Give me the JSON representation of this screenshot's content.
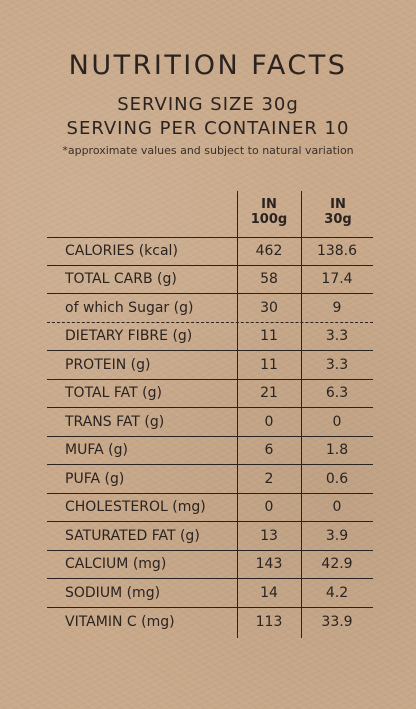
{
  "title": "NUTRITION FACTS",
  "serving_size": "SERVING SIZE 30g",
  "serving_per_container": "SERVING PER CONTAINER 10",
  "note": "*approximate values and subject to natural variation",
  "columns": {
    "col1_line1": "IN",
    "col1_line2": "100g",
    "col2_line1": "IN",
    "col2_line2": "30g"
  },
  "rows": [
    {
      "label": "CALORIES (kcal)",
      "v100": "462",
      "v30": "138.6"
    },
    {
      "label": "TOTAL CARB (g)",
      "v100": "58",
      "v30": "17.4"
    },
    {
      "label": "of which Sugar (g)",
      "v100": "30",
      "v30": "9"
    },
    {
      "label": "DIETARY FIBRE (g)",
      "v100": "11",
      "v30": "3.3"
    },
    {
      "label": "PROTEIN (g)",
      "v100": "11",
      "v30": "3.3"
    },
    {
      "label": "TOTAL FAT (g)",
      "v100": "21",
      "v30": "6.3"
    },
    {
      "label": "TRANS FAT (g)",
      "v100": "0",
      "v30": "0"
    },
    {
      "label": "MUFA (g)",
      "v100": "6",
      "v30": "1.8"
    },
    {
      "label": "PUFA (g)",
      "v100": "2",
      "v30": "0.6"
    },
    {
      "label": "CHOLESTEROL (mg)",
      "v100": "0",
      "v30": "0"
    },
    {
      "label": "SATURATED FAT (g)",
      "v100": "13",
      "v30": "3.9"
    },
    {
      "label": "CALCIUM (mg)",
      "v100": "143",
      "v30": "42.9"
    },
    {
      "label": "SODIUM (mg)",
      "v100": "14",
      "v30": "4.2"
    },
    {
      "label": "VITAMIN C (mg)",
      "v100": "113",
      "v30": "33.9"
    }
  ]
}
